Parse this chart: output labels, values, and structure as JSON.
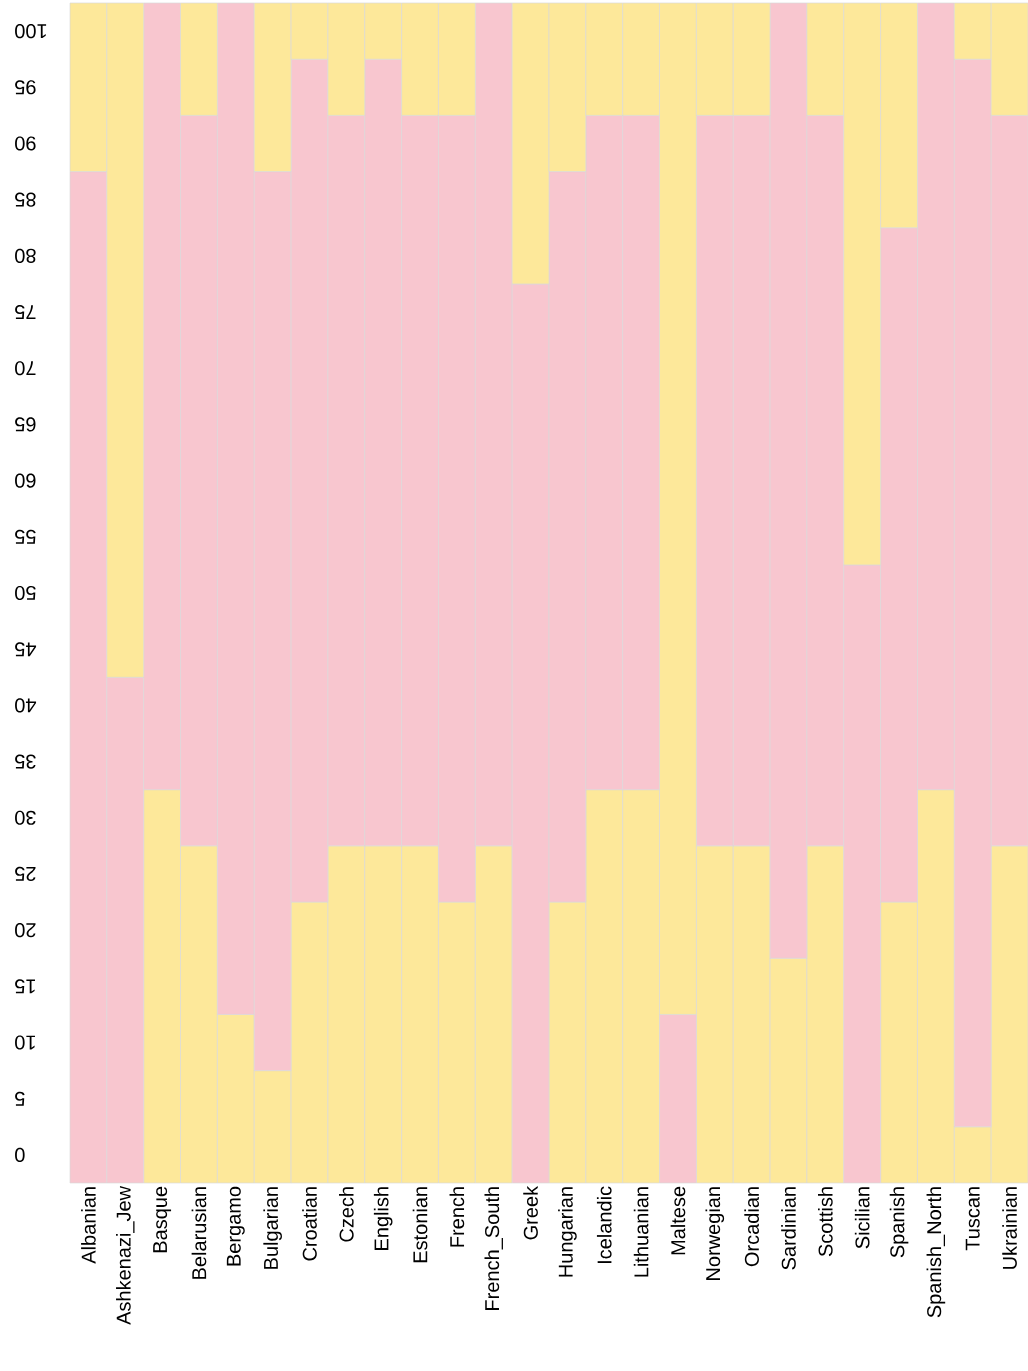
{
  "chart_data": {
    "type": "bar",
    "categories": [
      "Albanian",
      "Ashkenazi_Jew",
      "Basque",
      "Belarusian",
      "Bergamo",
      "Bulgarian",
      "Croatian",
      "Czech",
      "English",
      "Estonian",
      "French",
      "French_South",
      "Greek",
      "Hungarian",
      "Icelandic",
      "Lithuanian",
      "Maltese",
      "Norwegian",
      "Orcadian",
      "Sardinian",
      "Scottish",
      "Sicilian",
      "Spanish",
      "Spanish_North",
      "Tuscan",
      "Ukrainian"
    ],
    "ylim": [
      -2.5,
      102.5
    ],
    "yticks": [
      0,
      5,
      10,
      15,
      20,
      25,
      30,
      35,
      40,
      45,
      50,
      55,
      60,
      65,
      70,
      75,
      80,
      85,
      90,
      95,
      100
    ],
    "series": [
      {
        "color": "#fde89a",
        "base": [
          null,
          null,
          -2.5,
          -2.5,
          -2.5,
          -2.5,
          -2.5,
          -2.5,
          -2.5,
          -2.5,
          -2.5,
          -2.5,
          null,
          -2.5,
          -2.5,
          -2.5,
          null,
          -2.5,
          -2.5,
          -2.5,
          -2.5,
          null,
          -2.5,
          -2.5,
          -2.5,
          -2.5
        ],
        "values": [
          null,
          null,
          35,
          30,
          15,
          10,
          25,
          30,
          30,
          30,
          25,
          30,
          null,
          25,
          35,
          35,
          null,
          30,
          30,
          20,
          30,
          null,
          25,
          35,
          5,
          30
        ]
      },
      {
        "color": "#f8c6cf",
        "base": [
          -2.5,
          -2.5,
          32.5,
          27.5,
          12.5,
          7.5,
          22.5,
          27.5,
          27.5,
          27.5,
          22.5,
          27.5,
          -2.5,
          22.5,
          32.5,
          32.5,
          -2.5,
          27.5,
          27.5,
          17.5,
          27.5,
          -2.5,
          22.5,
          32.5,
          2.5,
          27.5
        ],
        "values": [
          90,
          45,
          70,
          65,
          90,
          80,
          75,
          65,
          70,
          65,
          70,
          75,
          80,
          65,
          60,
          60,
          15,
          65,
          65,
          85,
          65,
          55,
          60,
          70,
          95,
          65
        ]
      },
      {
        "color": "#fde89a",
        "base": [
          87.5,
          42.5,
          null,
          92.5,
          null,
          87.5,
          97.5,
          92.5,
          97.5,
          92.5,
          92.5,
          null,
          77.5,
          87.5,
          92.5,
          92.5,
          12.5,
          92.5,
          92.5,
          null,
          92.5,
          52.5,
          82.5,
          null,
          97.5,
          92.5
        ],
        "values": [
          15,
          60,
          null,
          10,
          null,
          15,
          5,
          10,
          5,
          10,
          10,
          null,
          25,
          15,
          10,
          10,
          90,
          10,
          10,
          null,
          10,
          50,
          20,
          null,
          5,
          10
        ]
      }
    ]
  }
}
